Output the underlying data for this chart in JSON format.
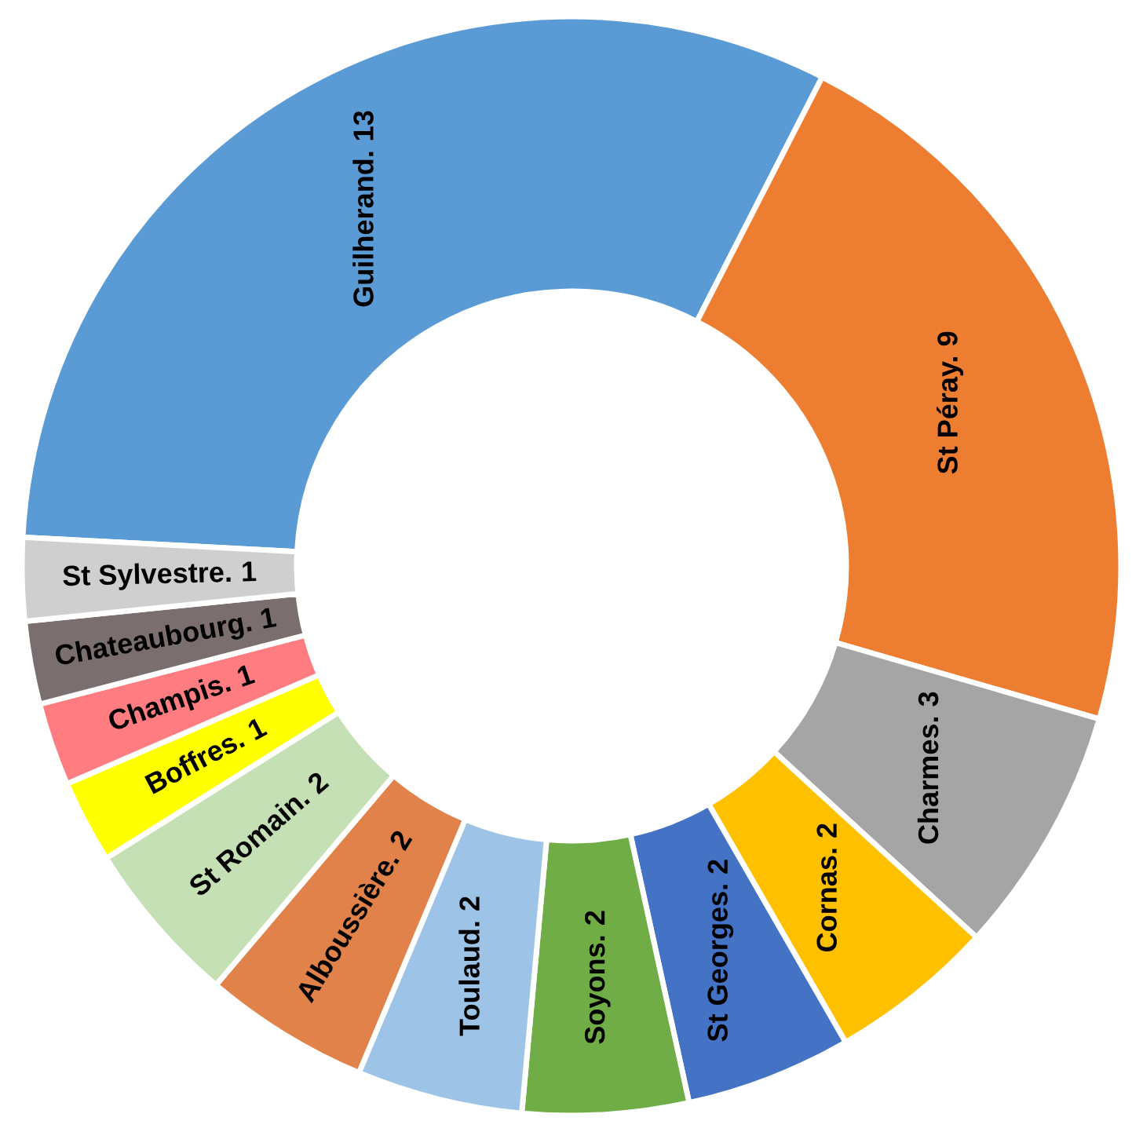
{
  "chart_data": {
    "type": "donut",
    "categories": [
      "Guilherand.",
      "St Péray.",
      "Charmes.",
      "Cornas.",
      "St Georges.",
      "Soyons.",
      "Toulaud.",
      "Alboussière.",
      "St Romain.",
      "Boffres.",
      "Champis.",
      "Chateaubourg.",
      "St Sylvestre."
    ],
    "values": [
      13,
      9,
      3,
      2,
      2,
      2,
      2,
      2,
      2,
      1,
      1,
      1,
      1
    ],
    "colors": [
      "#5b9bd5",
      "#ed7d31",
      "#a5a5a5",
      "#ffc000",
      "#4472c4",
      "#70ad47",
      "#9dc3e6",
      "#e0824a",
      "#c5e0b4",
      "#ffff00",
      "#ff7c80",
      "#7a6e6e",
      "#cfcfcf"
    ],
    "data_labels": true,
    "legend": false
  }
}
